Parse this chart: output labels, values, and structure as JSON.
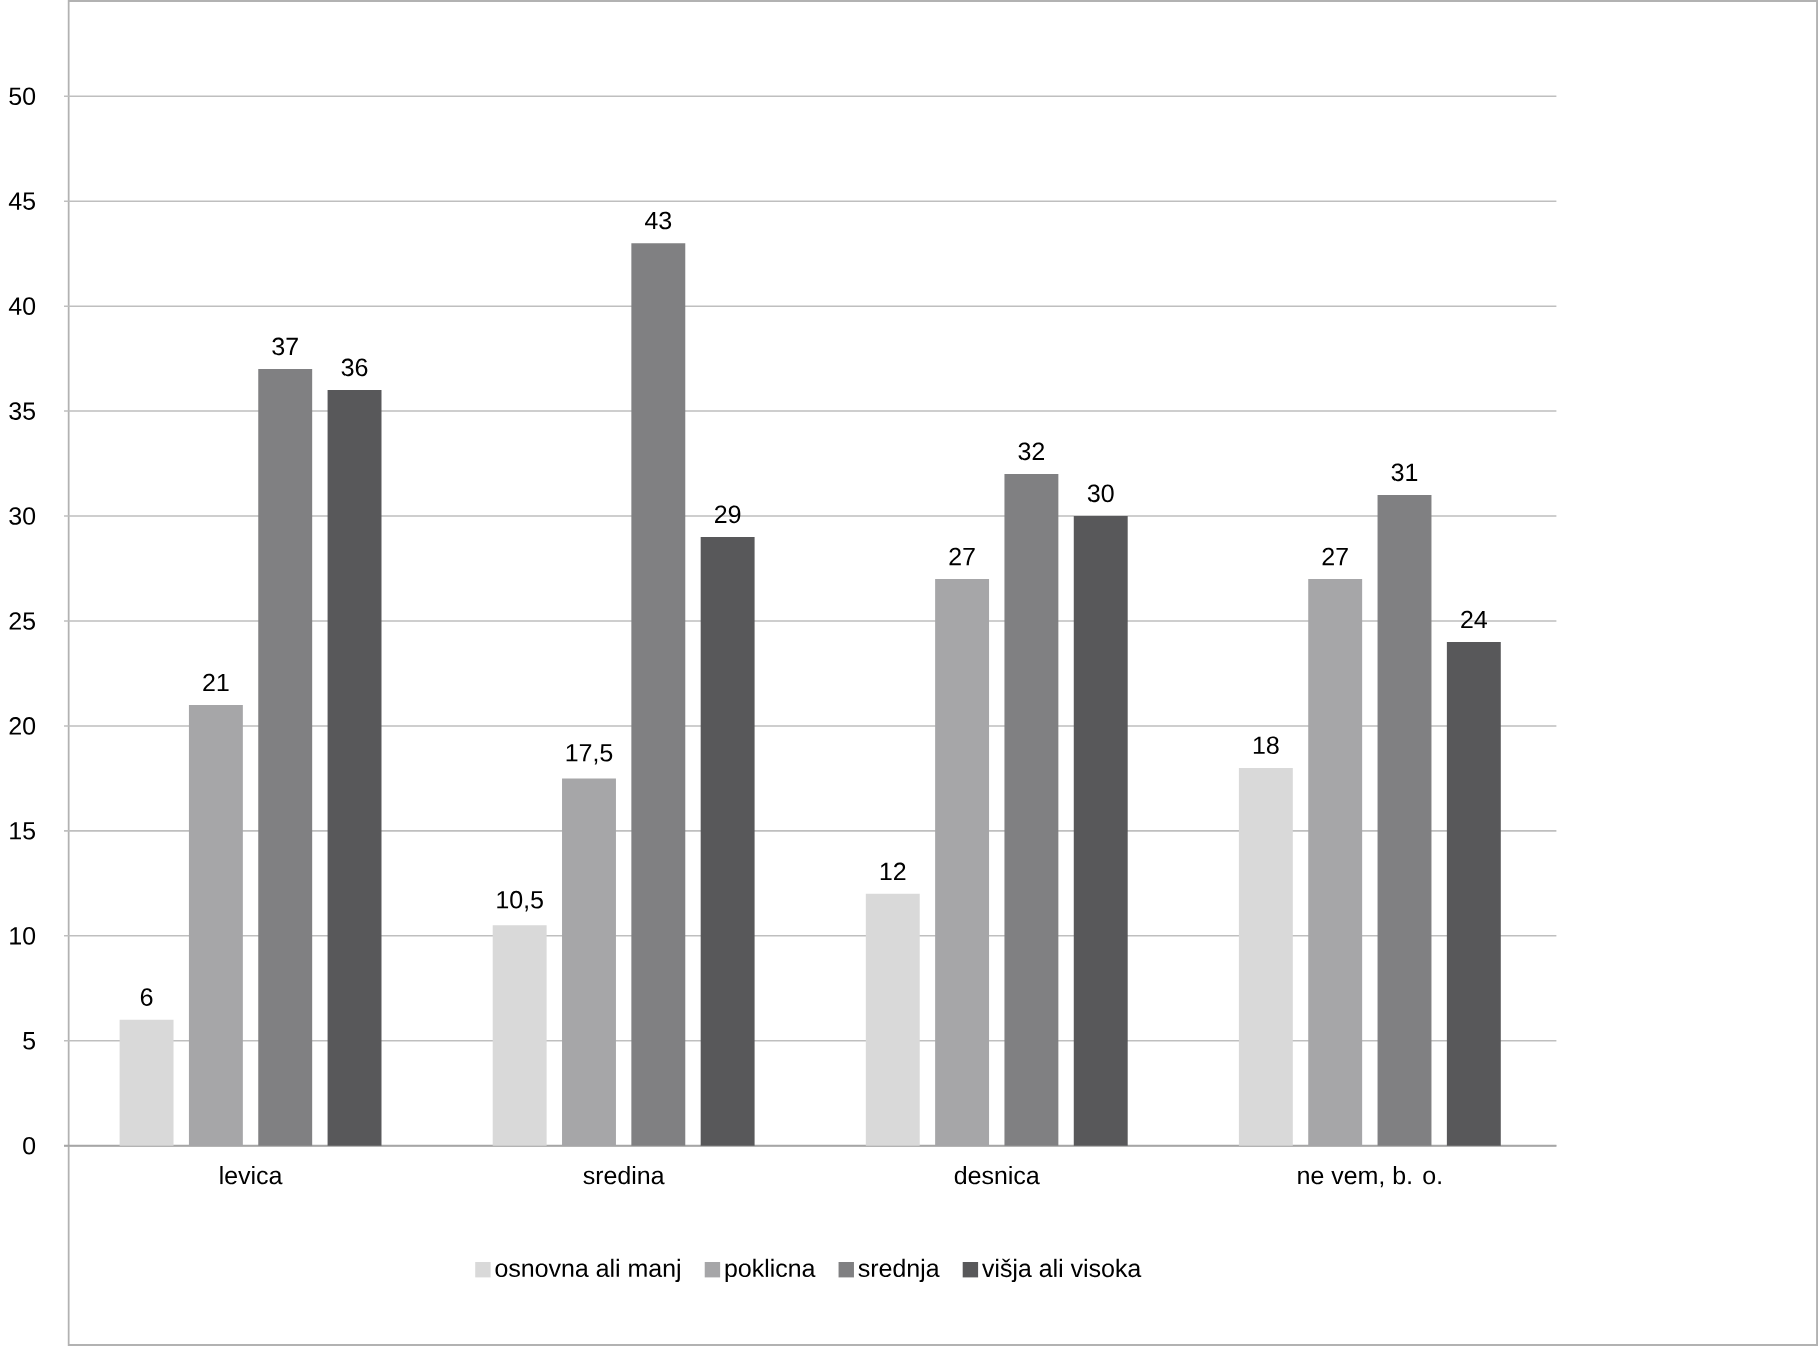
{
  "chart_data": {
    "type": "bar",
    "categories": [
      "levica",
      "sredina",
      "desnica",
      "ne vem, b. o."
    ],
    "series": [
      {
        "name": "osnovna ali manj",
        "color": "#d9d9d9",
        "values": [
          6,
          10.5,
          12,
          18
        ],
        "value_labels": [
          "6",
          "10,5",
          "12",
          "18"
        ]
      },
      {
        "name": "poklicna",
        "color": "#a6a6a8",
        "values": [
          21,
          17.5,
          27,
          27
        ],
        "value_labels": [
          "21",
          "17,5",
          "27",
          "27"
        ]
      },
      {
        "name": "srednja",
        "color": "#808082",
        "values": [
          37,
          43,
          32,
          31
        ],
        "value_labels": [
          "37",
          "43",
          "32",
          "31"
        ]
      },
      {
        "name": "višja ali visoka",
        "color": "#58585a",
        "values": [
          36,
          29,
          30,
          24
        ],
        "value_labels": [
          "36",
          "29",
          "30",
          "24"
        ]
      }
    ],
    "ylim": [
      0,
      50
    ],
    "yticks": [
      0,
      5,
      10,
      15,
      20,
      25,
      30,
      35,
      40,
      45,
      50
    ],
    "grid": "y",
    "legend": "bottom"
  }
}
